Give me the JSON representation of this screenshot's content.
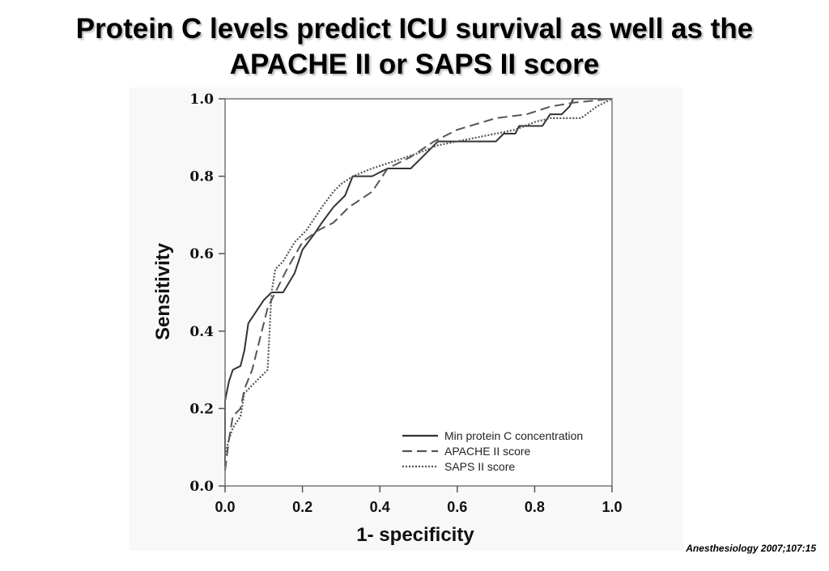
{
  "slide": {
    "title_line1": "Protein C levels predict ICU survival as well as the",
    "title_line2": "APACHE II  or SAPS II score",
    "citation": "Anesthesiology 2007;107:15"
  },
  "chart_data": {
    "type": "line",
    "title": "Protein C levels predict ICU survival as well as the APACHE II  or SAPS II score",
    "xlabel": "1- specificity",
    "ylabel": "Sensitivity",
    "xlim": [
      0,
      1
    ],
    "ylim": [
      0,
      1
    ],
    "x_ticks": [
      "0.0",
      "0.2",
      "0.4",
      "0.6",
      "0.8",
      "1.0"
    ],
    "y_ticks": [
      "0.0",
      "0.2",
      "0.4",
      "0.6",
      "0.8",
      "1.0"
    ],
    "grid": false,
    "legend_position": "bottom-right",
    "series": [
      {
        "name": "Min protein C concentration",
        "style": "solid",
        "color": "#333333",
        "points": [
          [
            0,
            0.05
          ],
          [
            0,
            0.22
          ],
          [
            0.01,
            0.27
          ],
          [
            0.02,
            0.3
          ],
          [
            0.04,
            0.31
          ],
          [
            0.05,
            0.35
          ],
          [
            0.06,
            0.42
          ],
          [
            0.08,
            0.45
          ],
          [
            0.1,
            0.48
          ],
          [
            0.12,
            0.5
          ],
          [
            0.15,
            0.5
          ],
          [
            0.18,
            0.55
          ],
          [
            0.2,
            0.61
          ],
          [
            0.23,
            0.65
          ],
          [
            0.25,
            0.68
          ],
          [
            0.28,
            0.72
          ],
          [
            0.31,
            0.75
          ],
          [
            0.33,
            0.8
          ],
          [
            0.38,
            0.8
          ],
          [
            0.42,
            0.82
          ],
          [
            0.48,
            0.82
          ],
          [
            0.52,
            0.86
          ],
          [
            0.55,
            0.89
          ],
          [
            0.65,
            0.89
          ],
          [
            0.7,
            0.89
          ],
          [
            0.72,
            0.91
          ],
          [
            0.75,
            0.91
          ],
          [
            0.76,
            0.93
          ],
          [
            0.82,
            0.93
          ],
          [
            0.84,
            0.96
          ],
          [
            0.87,
            0.96
          ],
          [
            0.89,
            0.98
          ],
          [
            0.9,
            1.0
          ],
          [
            1.0,
            1.0
          ]
        ]
      },
      {
        "name": "APACHE II score",
        "style": "dashed",
        "color": "#555555",
        "points": [
          [
            0,
            0.04
          ],
          [
            0.01,
            0.12
          ],
          [
            0.02,
            0.18
          ],
          [
            0.04,
            0.2
          ],
          [
            0.05,
            0.25
          ],
          [
            0.07,
            0.3
          ],
          [
            0.09,
            0.38
          ],
          [
            0.11,
            0.46
          ],
          [
            0.13,
            0.5
          ],
          [
            0.16,
            0.56
          ],
          [
            0.2,
            0.63
          ],
          [
            0.24,
            0.66
          ],
          [
            0.28,
            0.68
          ],
          [
            0.32,
            0.72
          ],
          [
            0.38,
            0.76
          ],
          [
            0.42,
            0.82
          ],
          [
            0.48,
            0.85
          ],
          [
            0.54,
            0.89
          ],
          [
            0.6,
            0.92
          ],
          [
            0.7,
            0.95
          ],
          [
            0.78,
            0.96
          ],
          [
            0.84,
            0.98
          ],
          [
            0.9,
            0.99
          ],
          [
            1.0,
            1.0
          ]
        ]
      },
      {
        "name": "SAPS II score",
        "style": "dotted",
        "color": "#555555",
        "points": [
          [
            0,
            0.08
          ],
          [
            0.01,
            0.12
          ],
          [
            0.02,
            0.15
          ],
          [
            0.04,
            0.18
          ],
          [
            0.05,
            0.24
          ],
          [
            0.07,
            0.26
          ],
          [
            0.09,
            0.28
          ],
          [
            0.11,
            0.3
          ],
          [
            0.12,
            0.5
          ],
          [
            0.13,
            0.56
          ],
          [
            0.15,
            0.58
          ],
          [
            0.18,
            0.63
          ],
          [
            0.21,
            0.66
          ],
          [
            0.25,
            0.72
          ],
          [
            0.28,
            0.76
          ],
          [
            0.3,
            0.78
          ],
          [
            0.33,
            0.8
          ],
          [
            0.38,
            0.82
          ],
          [
            0.44,
            0.84
          ],
          [
            0.5,
            0.86
          ],
          [
            0.55,
            0.88
          ],
          [
            0.6,
            0.89
          ],
          [
            0.65,
            0.9
          ],
          [
            0.7,
            0.91
          ],
          [
            0.75,
            0.92
          ],
          [
            0.8,
            0.94
          ],
          [
            0.84,
            0.95
          ],
          [
            0.92,
            0.95
          ],
          [
            0.96,
            0.98
          ],
          [
            1.0,
            1.0
          ]
        ]
      }
    ]
  }
}
